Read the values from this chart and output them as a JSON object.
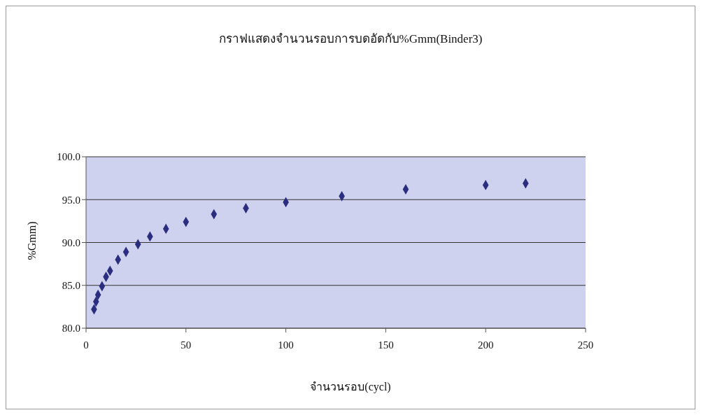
{
  "chart_data": {
    "type": "scatter",
    "title": "กราฟแสดงจำนวนรอบการบดอัดกับ%Gmm(Binder3)",
    "xlabel": "จำนวนรอบ(cycl)",
    "ylabel": "%Gmm)",
    "x": [
      4,
      5,
      6,
      8,
      10,
      12,
      16,
      20,
      26,
      32,
      40,
      50,
      64,
      80,
      100,
      128,
      160,
      200,
      220
    ],
    "series": [
      {
        "color": "#2b2d7e",
        "values": [
          82.2,
          83.1,
          83.9,
          84.9,
          86.0,
          86.7,
          88.0,
          88.9,
          89.8,
          90.7,
          91.6,
          92.4,
          93.3,
          94.0,
          94.7,
          95.4,
          96.2,
          96.7,
          96.9
        ]
      }
    ],
    "xlim": [
      0,
      250
    ],
    "xticks": [
      0,
      50,
      100,
      150,
      200,
      250
    ],
    "ylim": [
      80,
      100
    ],
    "yticks": [
      {
        "value": 80,
        "label": "80.0"
      },
      {
        "value": 85,
        "label": "85.0"
      },
      {
        "value": 90,
        "label": "90.0"
      },
      {
        "value": 95,
        "label": "95.0"
      },
      {
        "value": 100,
        "label": "100.0"
      }
    ],
    "grid": "y",
    "marker": "diamond"
  }
}
